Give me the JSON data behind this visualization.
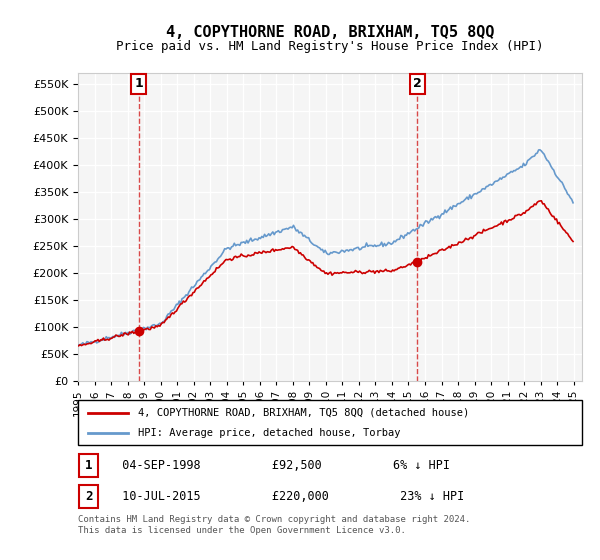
{
  "title": "4, COPYTHORNE ROAD, BRIXHAM, TQ5 8QQ",
  "subtitle": "Price paid vs. HM Land Registry's House Price Index (HPI)",
  "ylim": [
    0,
    570000
  ],
  "yticks": [
    0,
    50000,
    100000,
    150000,
    200000,
    250000,
    300000,
    350000,
    400000,
    450000,
    500000,
    550000
  ],
  "sale1_date_num": 1998.67,
  "sale1_price": 92500,
  "sale2_date_num": 2015.52,
  "sale2_price": 220000,
  "legend_label1": "4, COPYTHORNE ROAD, BRIXHAM, TQ5 8QQ (detached house)",
  "legend_label2": "HPI: Average price, detached house, Torbay",
  "annotation1": "1",
  "annotation2": "2",
  "ann1_date": "04-SEP-1998",
  "ann1_price": "£92,500",
  "ann1_hpi": "6% ↓ HPI",
  "ann2_date": "10-JUL-2015",
  "ann2_price": "£220,000",
  "ann2_hpi": "23% ↓ HPI",
  "footer": "Contains HM Land Registry data © Crown copyright and database right 2024.\nThis data is licensed under the Open Government Licence v3.0.",
  "line_color_red": "#cc0000",
  "line_color_blue": "#6699cc",
  "vline_color": "#cc0000",
  "bg_color": "#f5f5f5",
  "grid_color": "#ffffff"
}
